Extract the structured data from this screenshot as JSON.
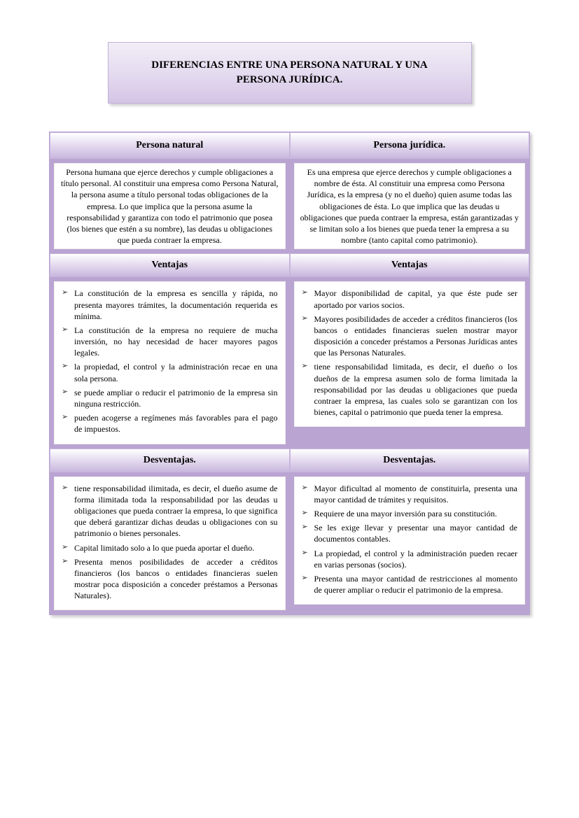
{
  "title": "DIFERENCIAS ENTRE UNA PERSONA NATURAL Y UNA PERSONA JURÍDICA.",
  "colors": {
    "background_purple": "#baa4d2",
    "gradient_light": "#f2edf7",
    "gradient_dark": "#c9b7de",
    "white": "#ffffff",
    "text": "#000000"
  },
  "fonts": {
    "family": "Times New Roman",
    "title_size": 15,
    "header_size": 14,
    "body_size": 12
  },
  "columns": [
    {
      "header": "Persona natural",
      "description": "Persona humana que ejerce derechos y cumple obligaciones a título personal.  Al constituir una empresa como Persona Natural, la persona asume a título personal todas obligaciones de la empresa. Lo que implica que la persona asume la responsabilidad y garantiza con todo el patrimonio que posea (los bienes que estén a su nombre), las deudas u obligaciones que pueda contraer la empresa.",
      "ventajas_header": "Ventajas",
      "ventajas": [
        "La constitución de la empresa es sencilla y rápida, no presenta mayores trámites, la documentación requerida es mínima.",
        "La constitución de la empresa no requiere de mucha inversión, no hay necesidad de hacer mayores pagos legales.",
        "la propiedad, el control y la administración recae en una sola persona.",
        "se puede ampliar o reducir el patrimonio de la empresa sin ninguna restricción.",
        "pueden acogerse a regímenes más favorables para el pago de impuestos."
      ],
      "desventajas_header": "Desventajas.",
      "desventajas": [
        "tiene responsabilidad ilimitada, es decir, el dueño asume de forma ilimitada toda la responsabilidad por las deudas u obligaciones que pueda contraer la empresa, lo que significa que deberá garantizar dichas deudas u obligaciones con su patrimonio o bienes personales.",
        "Capital limitado solo a lo que pueda aportar el dueño.",
        "Presenta menos posibilidades de acceder a créditos financieros (los bancos o entidades financieras suelen mostrar poca disposición a conceder préstamos a Personas Naturales)."
      ]
    },
    {
      "header": "Persona jurídica.",
      "description": "Es una empresa que ejerce derechos y cumple obligaciones a nombre de ésta. Al constituir una empresa como Persona Jurídica, es la empresa (y no el dueño) quien asume todas las obligaciones de ésta. Lo que implica que las deudas u obligaciones que pueda contraer la empresa, están garantizadas y se limitan solo a los bienes que pueda tener la empresa a su nombre (tanto capital como patrimonio).",
      "ventajas_header": "Ventajas",
      "ventajas": [
        "Mayor disponibilidad de capital, ya que éste pude ser aportado por varios socios.",
        "Mayores posibilidades de acceder a créditos financieros (los bancos o entidades financieras suelen mostrar mayor disposición a conceder préstamos a Personas Jurídicas antes que las Personas Naturales.",
        "tiene responsabilidad limitada, es decir, el dueño o los dueños de la empresa asumen solo de forma limitada la responsabilidad por las deudas u obligaciones que pueda contraer la empresa, las cuales solo se garantizan con los bienes, capital o patrimonio que pueda tener la empresa."
      ],
      "desventajas_header": "Desventajas.",
      "desventajas": [
        "Mayor dificultad al momento de constituirla, presenta una mayor cantidad de trámites y requisitos.",
        "Requiere de una mayor inversión para su constitución.",
        "Se les exige llevar y presentar una mayor cantidad de documentos contables.",
        "La propiedad, el control y la administración pueden recaer en varias personas (socios).",
        "Presenta una mayor cantidad de restricciones al momento de querer ampliar o reducir el patrimonio de la empresa."
      ]
    }
  ]
}
